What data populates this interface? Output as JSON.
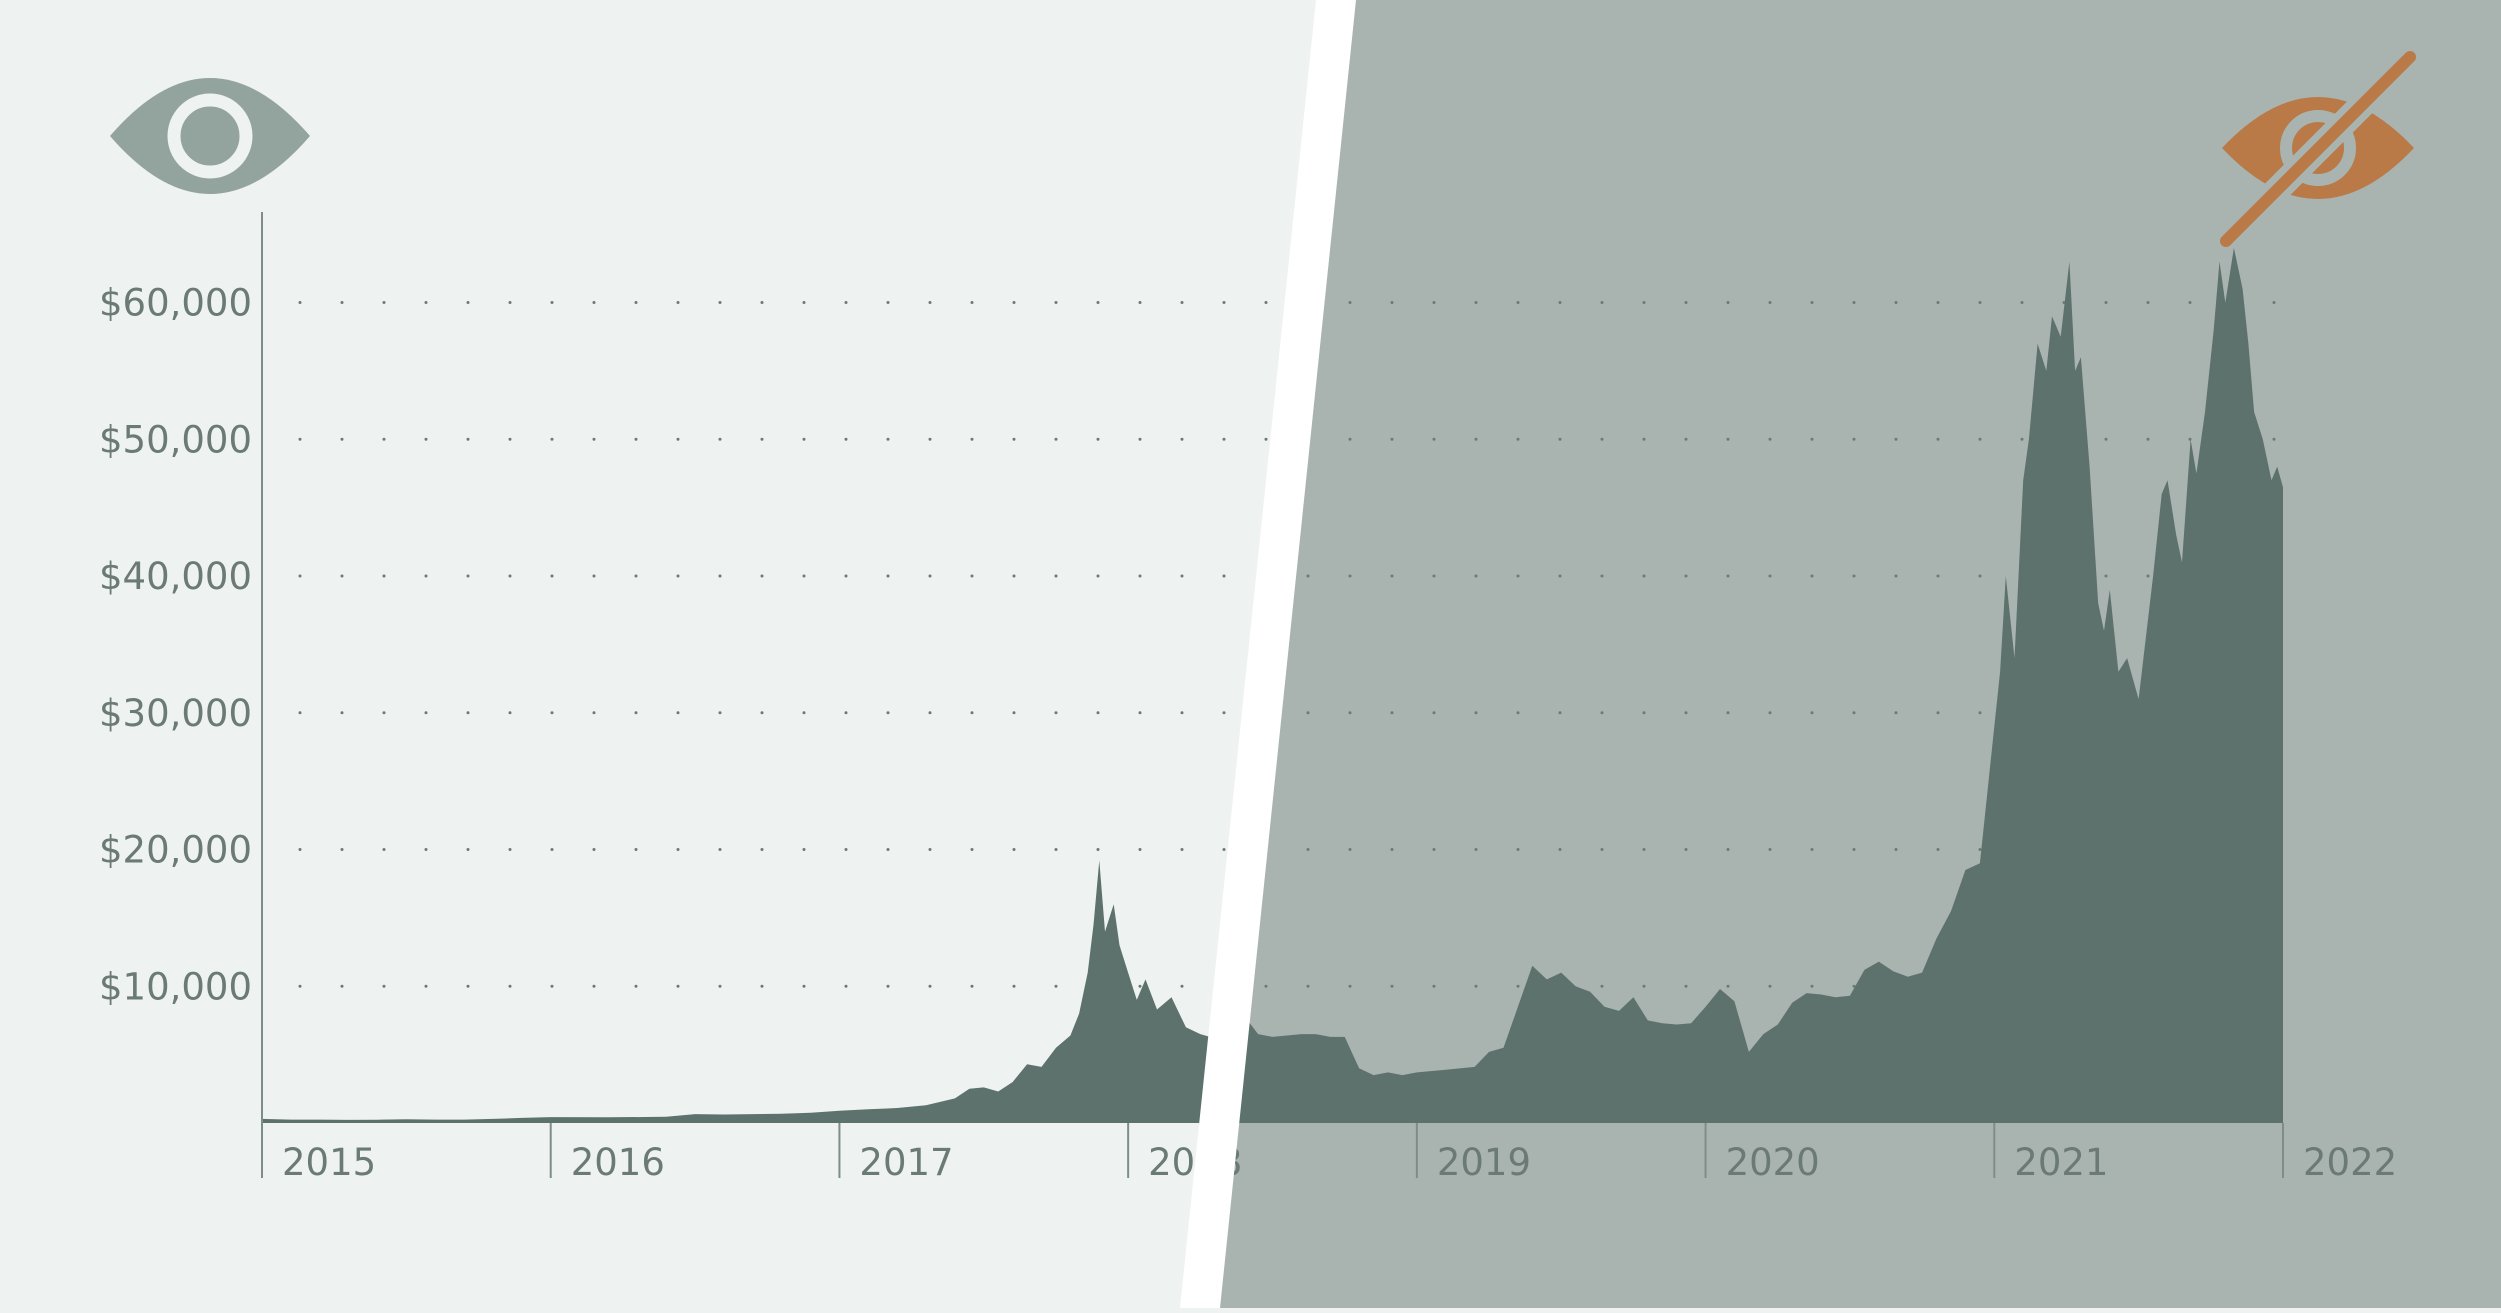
{
  "colors": {
    "left_background": "#eef2f0",
    "right_background": "#a9b4b1",
    "divider": "#ffffff",
    "area_fill": "#5e726d",
    "axis": "#7f8d88",
    "gridline_dots": "#6b7a74",
    "tick_label": "#6b7a74",
    "visible_eye_icon": "#93a39e",
    "hidden_eye_icon": "#b97a48"
  },
  "icons": {
    "left": "eye-icon",
    "right": "eye-slash-icon"
  },
  "chart_data": {
    "type": "area",
    "title": "",
    "xlabel": "",
    "ylabel": "",
    "x_ticks": [
      "2015",
      "2016",
      "2017",
      "2018",
      "2019",
      "2020",
      "2021",
      "2022"
    ],
    "y_ticks": [
      "$10,000",
      "$20,000",
      "$30,000",
      "$40,000",
      "$50,000",
      "$60,000"
    ],
    "y_tick_values": [
      10000,
      20000,
      30000,
      40000,
      50000,
      60000
    ],
    "ylim": [
      0,
      67500
    ],
    "xlim": [
      2015.0,
      2022.0
    ],
    "grid": "horizontal dotted",
    "legend": "none",
    "series": [
      {
        "x": [
          2015.0,
          2015.1,
          2015.2,
          2015.3,
          2015.4,
          2015.5,
          2015.6,
          2015.7,
          2015.8,
          2015.9,
          2016.0,
          2016.2,
          2016.4,
          2016.5,
          2016.6,
          2016.8,
          2016.9,
          2017.0,
          2017.1,
          2017.2,
          2017.3,
          2017.4,
          2017.45,
          2017.5,
          2017.55,
          2017.6,
          2017.65,
          2017.7,
          2017.75,
          2017.8,
          2017.83,
          2017.86,
          2017.88,
          2017.9,
          2017.92,
          2017.95,
          2017.97,
          2018.0,
          2018.03,
          2018.06,
          2018.1,
          2018.15,
          2018.2,
          2018.25,
          2018.3,
          2018.35,
          2018.4,
          2018.45,
          2018.5,
          2018.55,
          2018.6,
          2018.65,
          2018.7,
          2018.75,
          2018.8,
          2018.85,
          2018.9,
          2018.95,
          2019.0,
          2019.1,
          2019.2,
          2019.25,
          2019.3,
          2019.35,
          2019.4,
          2019.45,
          2019.5,
          2019.55,
          2019.6,
          2019.65,
          2019.7,
          2019.75,
          2019.8,
          2019.85,
          2019.9,
          2019.95,
          2020.0,
          2020.05,
          2020.1,
          2020.15,
          2020.2,
          2020.25,
          2020.3,
          2020.35,
          2020.4,
          2020.45,
          2020.5,
          2020.55,
          2020.6,
          2020.65,
          2020.7,
          2020.75,
          2020.8,
          2020.85,
          2020.9,
          2020.95,
          2021.0,
          2021.02,
          2021.04,
          2021.07,
          2021.1,
          2021.12,
          2021.15,
          2021.18,
          2021.2,
          2021.23,
          2021.26,
          2021.28,
          2021.3,
          2021.33,
          2021.36,
          2021.38,
          2021.4,
          2021.43,
          2021.46,
          2021.5,
          2021.55,
          2021.58,
          2021.6,
          2021.63,
          2021.65,
          2021.68,
          2021.7,
          2021.73,
          2021.76,
          2021.78,
          2021.8,
          2021.83,
          2021.86,
          2021.88,
          2021.9,
          2021.93,
          2021.96,
          2021.98,
          2022.0
        ],
        "y": [
          300,
          250,
          250,
          230,
          240,
          270,
          250,
          250,
          300,
          370,
          430,
          420,
          450,
          650,
          620,
          680,
          750,
          900,
          1000,
          1100,
          1300,
          1800,
          2500,
          2600,
          2300,
          3000,
          4300,
          4100,
          5500,
          6400,
          8000,
          11000,
          14500,
          19200,
          14000,
          16000,
          13000,
          11000,
          9000,
          10500,
          8300,
          9200,
          7000,
          6500,
          6200,
          6800,
          7900,
          6500,
          6300,
          6400,
          6500,
          6500,
          6300,
          6300,
          4000,
          3500,
          3700,
          3500,
          3700,
          3900,
          4100,
          5200,
          5500,
          8500,
          11500,
          10500,
          11000,
          10000,
          9600,
          8500,
          8200,
          9200,
          7500,
          7300,
          7200,
          7300,
          8500,
          9800,
          8900,
          5200,
          6500,
          7200,
          8800,
          9500,
          9400,
          9200,
          9300,
          11200,
          11800,
          11100,
          10700,
          11000,
          13500,
          15500,
          18500,
          19000,
          29000,
          33000,
          40000,
          34000,
          47000,
          50000,
          57000,
          55000,
          59000,
          57500,
          63000,
          55000,
          56000,
          48000,
          38000,
          36000,
          39000,
          33000,
          34000,
          31000,
          40000,
          46000,
          47000,
          43000,
          41000,
          50000,
          47500,
          52000,
          58000,
          63000,
          60000,
          64000,
          61000,
          57000,
          52000,
          50000,
          47000,
          48000,
          46500
        ]
      }
    ]
  }
}
